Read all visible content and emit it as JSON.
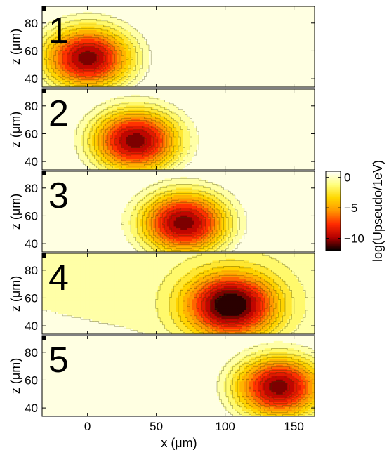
{
  "chart_data": {
    "type": "heatmap",
    "subtype": "filled-contour",
    "xlabel": "x (μm)",
    "ylabel": "z (μm)",
    "xlim": [
      -33,
      165
    ],
    "ylim": [
      34,
      92
    ],
    "xticks": [
      0,
      50,
      100,
      150
    ],
    "yticks": [
      40,
      60,
      80
    ],
    "colorbar": {
      "label": "log(Upseudo/1eV)",
      "range": [
        -12,
        1
      ],
      "ticks": [
        0,
        -5,
        -10
      ],
      "tick_labels": [
        "0",
        "−5",
        "−10"
      ],
      "colormap": [
        "#000000",
        "#b40000",
        "#ff2a00",
        "#ff9600",
        "#ffd800",
        "#ffff80",
        "#ffffff"
      ]
    },
    "contour_levels": [
      -12,
      -11,
      -10,
      -9,
      -8,
      -7,
      -6,
      -5,
      -4,
      -3,
      -2,
      -1,
      0,
      1
    ],
    "panels": [
      {
        "label": "1",
        "trap_center": {
          "x": 0,
          "z": 55
        },
        "min_value": -10
      },
      {
        "label": "2",
        "trap_center": {
          "x": 35,
          "z": 55
        },
        "min_value": -10
      },
      {
        "label": "3",
        "trap_center": {
          "x": 70,
          "z": 55
        },
        "min_value": -10
      },
      {
        "label": "4",
        "trap_center": {
          "x": 104,
          "z": 55
        },
        "min_value": -12
      },
      {
        "label": "5",
        "trap_center": {
          "x": 139,
          "z": 55
        },
        "min_value": -10
      }
    ]
  }
}
